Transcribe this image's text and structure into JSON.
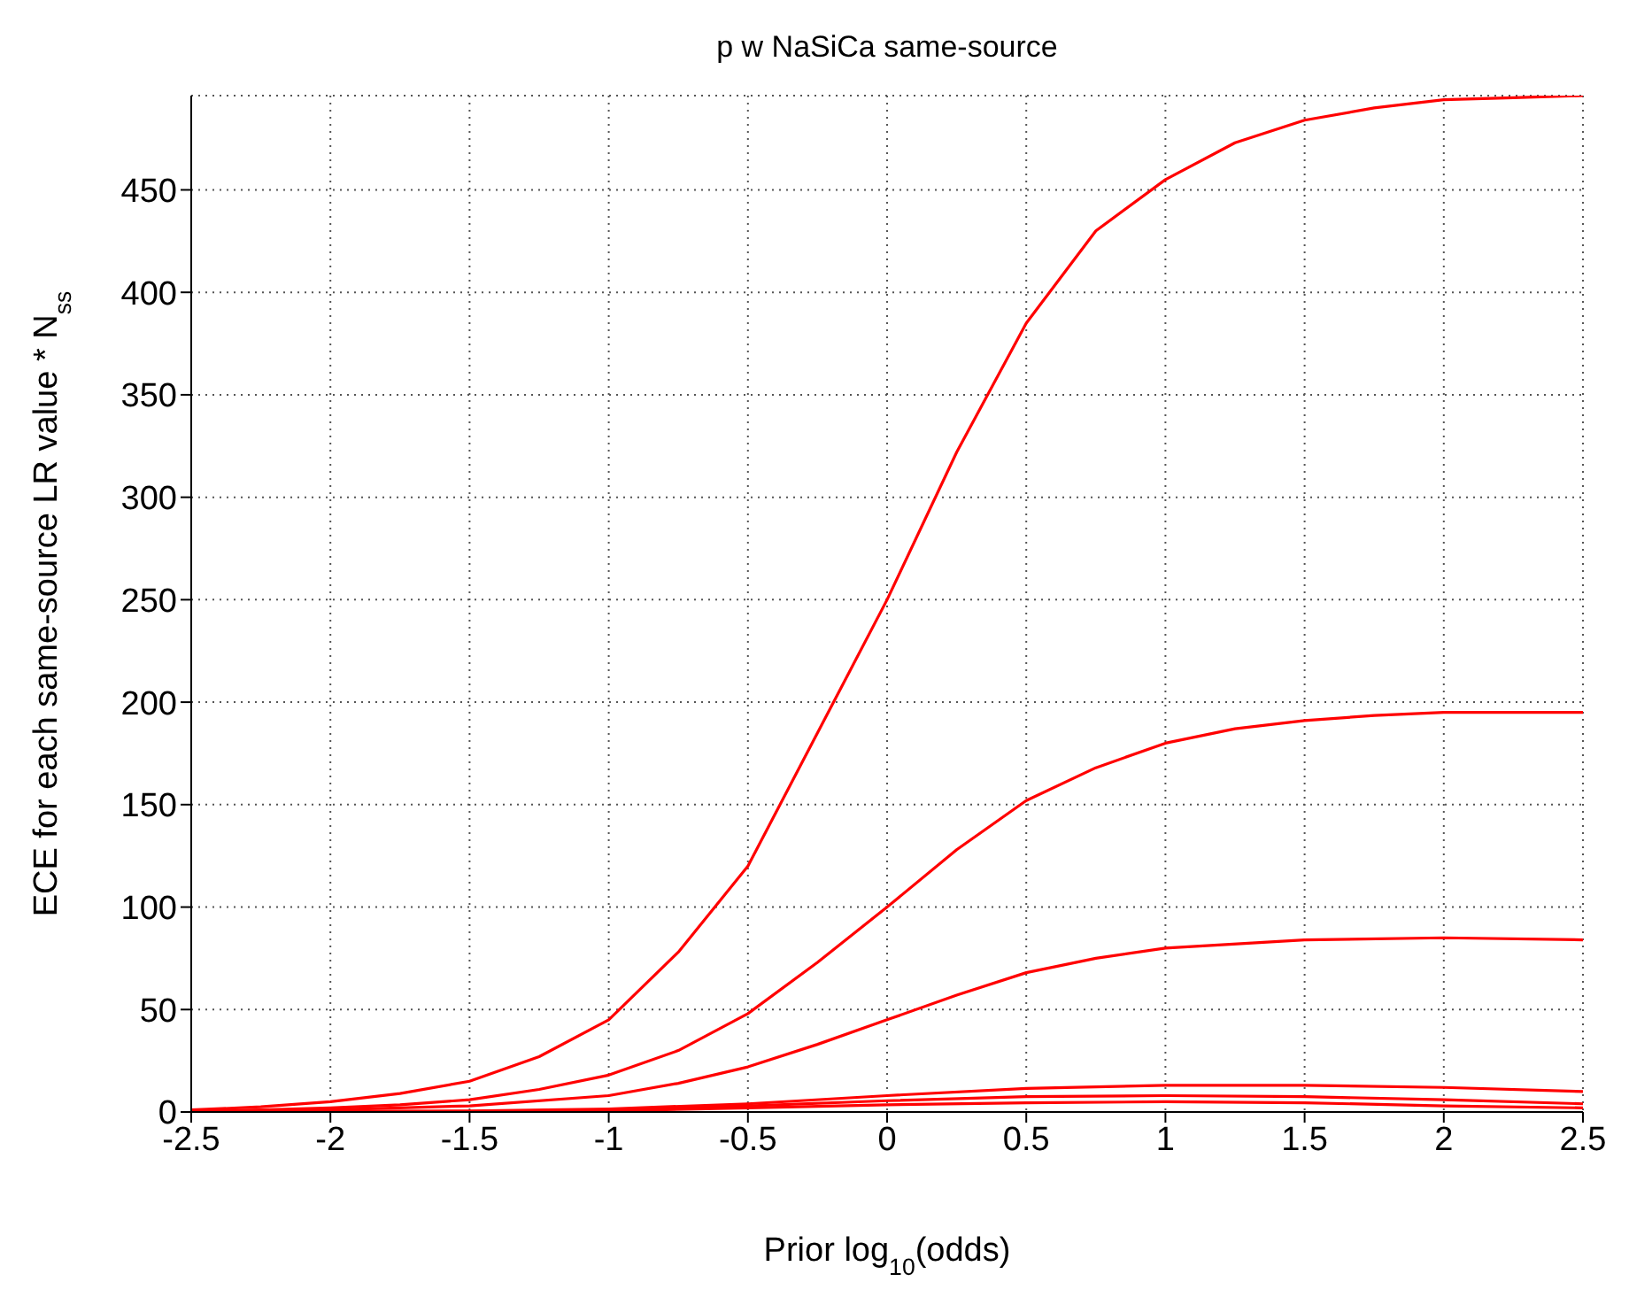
{
  "chart_data": {
    "type": "line",
    "title": "p w NaSiCa same-source",
    "xlabel": "Prior log$_{10}$(odds)",
    "ylabel": "ECE for each same-source LR value * N$_{ss}$",
    "xlim": [
      -2.5,
      2.5
    ],
    "xticks": [
      -2.5,
      -2,
      -1.5,
      -1,
      -0.5,
      0,
      0.5,
      1,
      1.5,
      2,
      2.5
    ],
    "ylim": [
      0,
      496
    ],
    "yticks": [
      0,
      50,
      100,
      150,
      200,
      250,
      300,
      350,
      400,
      450
    ],
    "grid": true,
    "legend": false,
    "marker": "none",
    "line_style": "solid",
    "series": [
      {
        "color": "#ff0000",
        "x": [
          -2.5,
          -2.25,
          -2,
          -1.75,
          -1.5,
          -1.25,
          -1,
          -0.75,
          -0.5,
          -0.25,
          0,
          0.25,
          0.5,
          0.75,
          1,
          1.25,
          1.5,
          1.75,
          2,
          2.25,
          2.5
        ],
        "values": [
          1,
          2.5,
          5,
          9,
          15,
          27,
          45,
          78,
          120,
          185,
          250,
          322,
          385,
          430,
          455,
          473,
          484,
          490,
          494,
          495,
          496
        ]
      },
      {
        "color": "#ff0000",
        "x": [
          -2.5,
          -2.25,
          -2,
          -1.75,
          -1.5,
          -1.25,
          -1,
          -0.75,
          -0.5,
          -0.25,
          0,
          0.25,
          0.5,
          0.75,
          1,
          1.25,
          1.5,
          1.75,
          2,
          2.25,
          2.5
        ],
        "values": [
          0.5,
          1,
          2,
          3.5,
          6,
          11,
          18,
          30,
          48,
          73,
          100,
          128,
          152,
          168,
          180,
          187,
          191,
          193.5,
          195,
          195,
          195
        ]
      },
      {
        "color": "#ff0000",
        "x": [
          -2.5,
          -2,
          -1.5,
          -1,
          -0.75,
          -0.5,
          -0.25,
          0,
          0.25,
          0.5,
          0.75,
          1,
          1.5,
          2,
          2.5
        ],
        "values": [
          0.3,
          1,
          3,
          8,
          14,
          22,
          33,
          45,
          57,
          68,
          75,
          80,
          84,
          85,
          84
        ]
      },
      {
        "color": "#ff0000",
        "x": [
          -2.5,
          -1.5,
          -1,
          -0.5,
          0,
          0.5,
          1,
          1.5,
          2,
          2.5
        ],
        "values": [
          0,
          0.5,
          1.5,
          4,
          8,
          11.5,
          13,
          13,
          12,
          10
        ]
      },
      {
        "color": "#ff0000",
        "x": [
          -2.5,
          -1.5,
          -1,
          -0.5,
          0,
          0.5,
          1,
          1.5,
          2,
          2.5
        ],
        "values": [
          0,
          0.3,
          1,
          3,
          5.5,
          7.5,
          8,
          7.5,
          6,
          4
        ]
      },
      {
        "color": "#ff0000",
        "x": [
          -2.5,
          -1.5,
          -1,
          -0.5,
          0,
          0.5,
          1,
          1.5,
          2,
          2.5
        ],
        "values": [
          0,
          0.1,
          0.5,
          2,
          3.5,
          4.5,
          5,
          4.5,
          3,
          2
        ]
      }
    ]
  }
}
